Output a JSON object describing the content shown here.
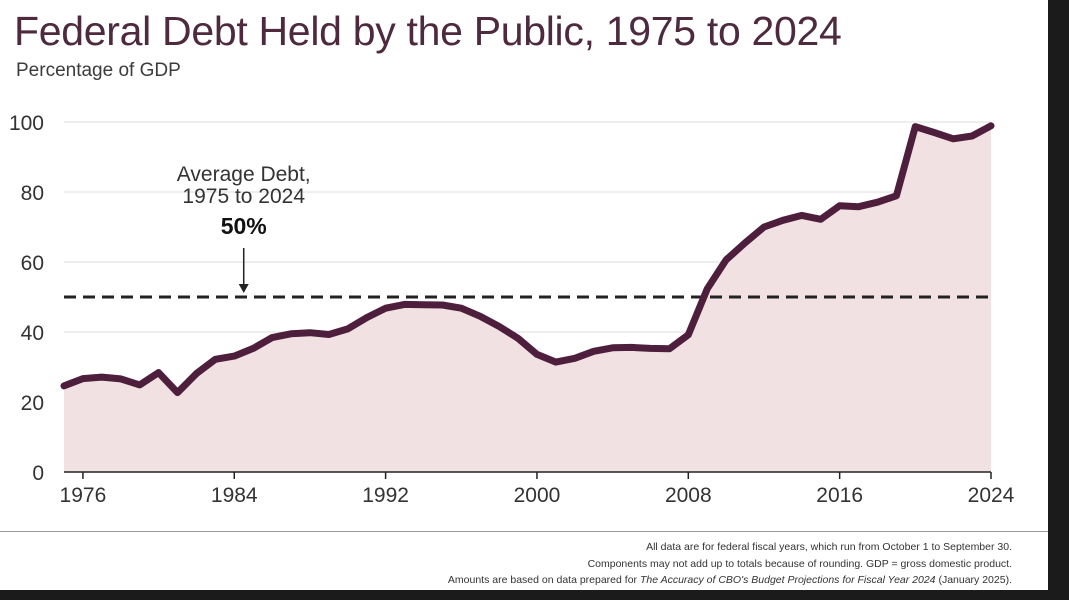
{
  "title": "Federal Debt Held by the Public, 1975 to 2024",
  "subtitle": "Percentage of GDP",
  "notes": {
    "line1": "All data are for federal fiscal years, which run from October 1 to September 30.",
    "line2": "Components may not add up to totals because of rounding. GDP = gross domestic product.",
    "line3_before": "Amounts are based on data prepared for ",
    "line3_italic": "The Accuracy of CBO's Budget Projections for Fiscal Year 2024",
    "line3_after": " (January 2025)."
  },
  "colors": {
    "line": "#4e1f3c",
    "fill": "#f1e1e3",
    "title": "#4e2a3f",
    "average_line": "#222222",
    "grid": "#dddddd"
  },
  "chart_data": {
    "type": "area",
    "x": [
      1975,
      1976,
      1977,
      1978,
      1979,
      1980,
      1981,
      1982,
      1983,
      1984,
      1985,
      1986,
      1987,
      1988,
      1989,
      1990,
      1991,
      1992,
      1993,
      1994,
      1995,
      1996,
      1997,
      1998,
      1999,
      2000,
      2001,
      2002,
      2003,
      2004,
      2005,
      2006,
      2007,
      2008,
      2009,
      2010,
      2011,
      2012,
      2013,
      2014,
      2015,
      2016,
      2017,
      2018,
      2019,
      2020,
      2021,
      2022,
      2023,
      2024
    ],
    "series": [
      {
        "values": [
          24.6,
          26.7,
          27.1,
          26.6,
          24.9,
          28.4,
          22.7,
          28.1,
          32.2,
          33.1,
          35.3,
          38.4,
          39.5,
          39.8,
          39.3,
          40.9,
          44.1,
          46.8,
          47.9,
          47.8,
          47.7,
          46.8,
          44.5,
          41.6,
          38.2,
          33.6,
          31.4,
          32.5,
          34.5,
          35.5,
          35.6,
          35.3,
          35.2,
          39.2,
          52.3,
          60.6,
          65.5,
          70.0,
          71.9,
          73.3,
          72.2,
          76.1,
          75.8,
          77.1,
          78.9,
          98.7,
          97.0,
          95.2,
          96.0,
          98.9
        ]
      }
    ],
    "average": {
      "value": 50,
      "label_line1": "Average Debt,",
      "label_line2": "1975 to 2024",
      "value_label": "50%",
      "arrow_x": 1984.5
    },
    "x_ticks": [
      1976,
      1984,
      1992,
      2000,
      2008,
      2016,
      2024
    ],
    "y_ticks": [
      0,
      20,
      40,
      60,
      80,
      100
    ],
    "xlim": [
      1975,
      2024
    ],
    "ylim": [
      0,
      100
    ],
    "xlabel": "",
    "ylabel": "",
    "grid": true,
    "legend": "none"
  }
}
